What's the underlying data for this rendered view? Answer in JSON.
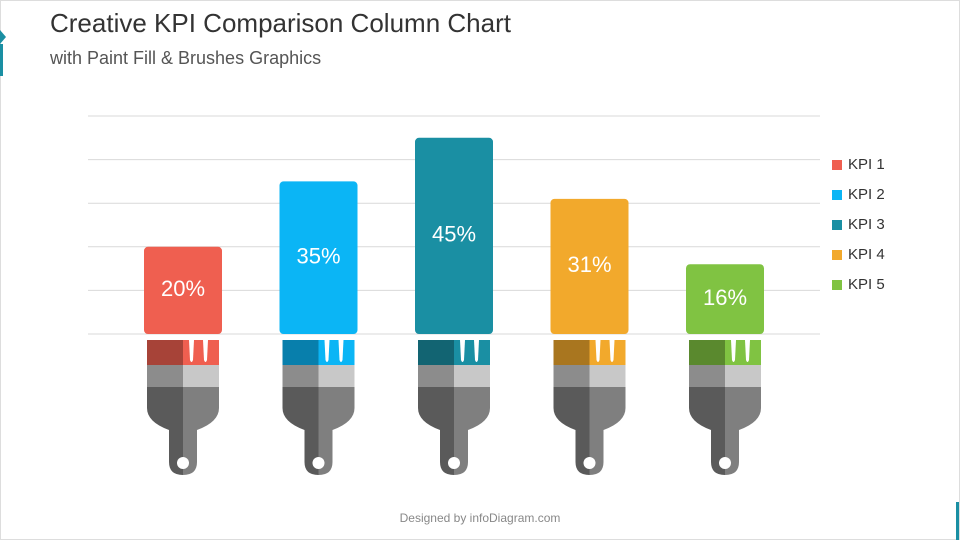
{
  "chart_data": {
    "type": "bar",
    "title": "Creative KPI Comparison Column Chart",
    "subtitle": "with Paint Fill & Brushes Graphics",
    "categories": [
      "KPI 1",
      "KPI 2",
      "KPI 3",
      "KPI 4",
      "KPI 5"
    ],
    "values": [
      20,
      35,
      45,
      31,
      16
    ],
    "value_labels": [
      "20%",
      "35%",
      "45%",
      "31%",
      "16%"
    ],
    "colors": [
      "#ef5f50",
      "#0bb5f5",
      "#1a8fa3",
      "#f2a92c",
      "#80c342"
    ],
    "ylim": [
      0,
      50
    ],
    "yticks": [
      0,
      10,
      20,
      30,
      40,
      50
    ],
    "grid": true,
    "legend": "right"
  },
  "footer": "Designed by infoDiagram.com"
}
